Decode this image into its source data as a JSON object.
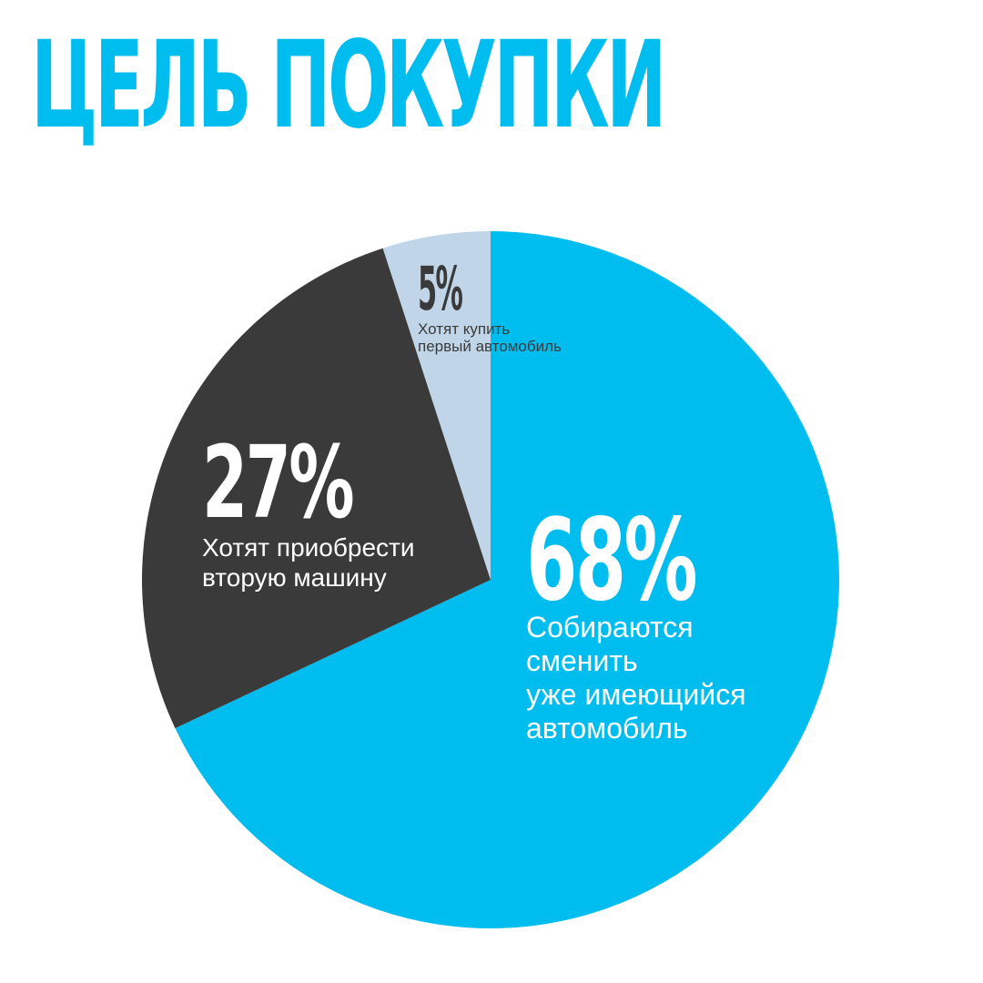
{
  "header": {
    "title": "ЦЕЛЬ ПОКУПКИ",
    "title_color": "#00BDEF"
  },
  "chart_data": {
    "type": "pie",
    "title": "ЦЕЛЬ ПОКУПКИ",
    "slices": [
      {
        "value": 68,
        "label": "68%",
        "description": [
          "Собираются",
          "сменить",
          "уже имеющийся",
          "автомобиль"
        ],
        "color": "#00BDEF",
        "text_color": "#FFFFFF"
      },
      {
        "value": 27,
        "label": "27%",
        "description": [
          "Хотят приобрести",
          "вторую машину"
        ],
        "color": "#3A3A3B",
        "text_color": "#FFFFFF"
      },
      {
        "value": 5,
        "label": "5%",
        "description": [
          "Хотят купить",
          "первый автомобиль"
        ],
        "color": "#C0D6E8",
        "text_color": "#3A3A3B"
      }
    ]
  }
}
